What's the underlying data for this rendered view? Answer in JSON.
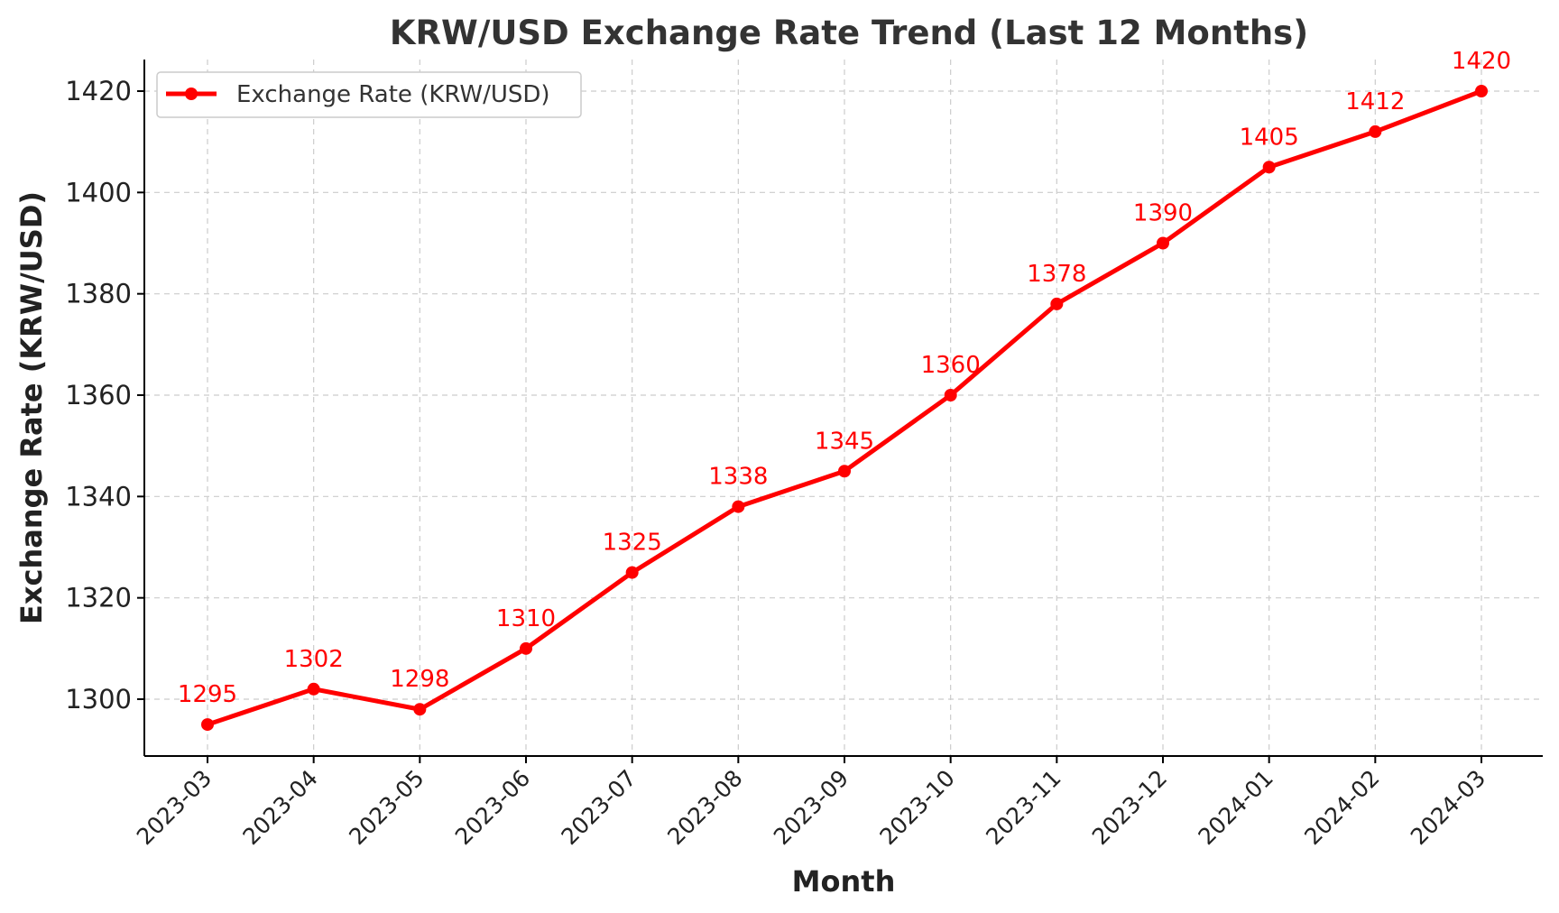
{
  "chart_data": {
    "type": "line",
    "title": "KRW/USD Exchange Rate Trend (Last 12 Months)",
    "xlabel": "Month",
    "ylabel": "Exchange Rate (KRW/USD)",
    "categories": [
      "2023-03",
      "2023-04",
      "2023-05",
      "2023-06",
      "2023-07",
      "2023-08",
      "2023-09",
      "2023-10",
      "2023-11",
      "2023-12",
      "2024-01",
      "2024-02",
      "2024-03"
    ],
    "series": [
      {
        "name": "Exchange Rate (KRW/USD)",
        "color": "#ff0000",
        "values": [
          1295,
          1302,
          1298,
          1310,
          1325,
          1338,
          1345,
          1360,
          1378,
          1390,
          1405,
          1412,
          1420
        ],
        "data_labels": [
          "1295",
          "1302",
          "1298",
          "1310",
          "1325",
          "1338",
          "1345",
          "1360",
          "1378",
          "1390",
          "1405",
          "1412",
          "1420"
        ]
      }
    ],
    "yticks": [
      1300,
      1320,
      1340,
      1360,
      1380,
      1400,
      1420
    ],
    "ylim": [
      1289,
      1426
    ],
    "grid": true,
    "legend_position": "top-left"
  }
}
